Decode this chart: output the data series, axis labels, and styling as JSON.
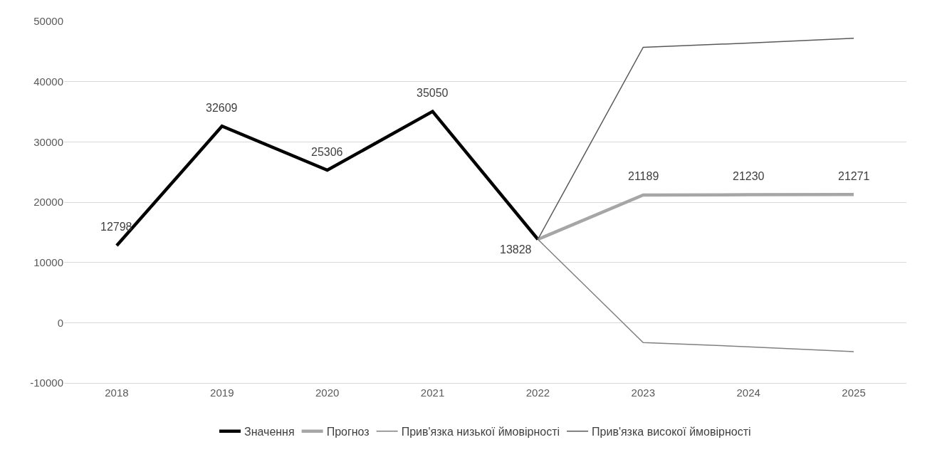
{
  "chart_data": {
    "type": "line",
    "categories": [
      "2018",
      "2019",
      "2020",
      "2021",
      "2022",
      "2023",
      "2024",
      "2025"
    ],
    "series": [
      {
        "name": "Значення",
        "color": "#000000",
        "values": [
          12798,
          32609,
          25306,
          35050,
          13828,
          null,
          null,
          null
        ],
        "value_labels": [
          "12798",
          "32609",
          "25306",
          "35050",
          "13828",
          null,
          null,
          null
        ]
      },
      {
        "name": "Прогноз",
        "color": "#a6a6a6",
        "values": [
          null,
          null,
          null,
          null,
          13828,
          21189,
          21230,
          21271
        ],
        "value_labels": [
          null,
          null,
          null,
          null,
          null,
          "21189",
          "21230",
          "21271"
        ]
      },
      {
        "name": "Прив'язка низької ймовірності",
        "color": "#808080",
        "values": [
          null,
          null,
          null,
          null,
          13828,
          -3300,
          -4000,
          -4800
        ]
      },
      {
        "name": "Прив'язка високої ймовірності",
        "color": "#595959",
        "values": [
          null,
          null,
          null,
          null,
          13828,
          45700,
          46400,
          47200
        ]
      }
    ],
    "ylim": [
      -10000,
      50000
    ],
    "yticks": [
      -10000,
      0,
      10000,
      20000,
      30000,
      40000,
      50000
    ],
    "grid": "y",
    "legend": "bottom",
    "marker": "none",
    "line_style": "solid"
  }
}
